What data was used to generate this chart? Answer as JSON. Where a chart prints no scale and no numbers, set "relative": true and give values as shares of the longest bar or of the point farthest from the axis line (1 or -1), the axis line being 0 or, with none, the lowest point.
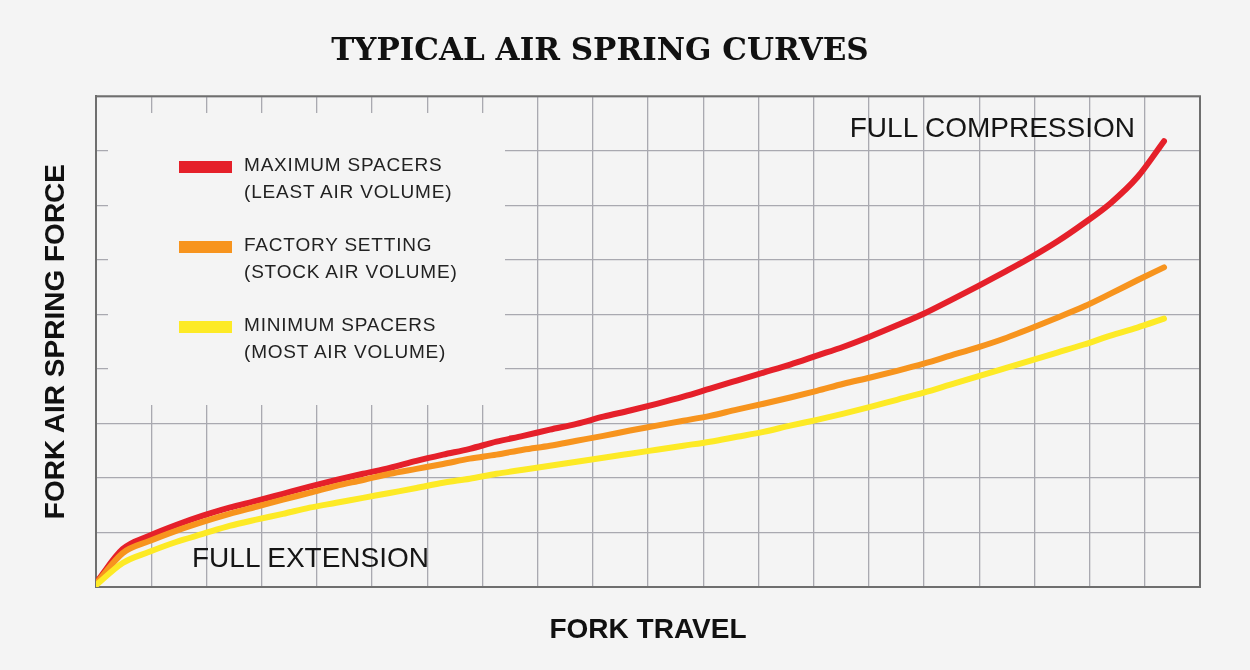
{
  "chart_data": {
    "type": "line",
    "title": "TYPICAL AIR SPRING CURVES",
    "xlabel": "FORK TRAVEL",
    "ylabel": "FORK AIR SPRING FORCE",
    "relative": true,
    "categories": [
      null,
      null,
      null,
      null,
      null,
      null,
      null,
      null,
      null,
      null,
      null,
      null,
      null,
      null,
      null,
      null,
      null,
      null,
      null,
      null,
      null,
      null,
      null,
      null,
      null,
      null,
      null,
      null,
      null,
      null,
      null,
      null,
      null,
      null,
      null,
      null,
      null,
      null,
      null,
      null,
      null
    ],
    "series": [
      {
        "name": "MAXIMUM SPACERS (LEAST AIR VOLUME)",
        "color": "#e5202a",
        "values": [
          0.009,
          0.085,
          0.115,
          0.139,
          0.16,
          0.178,
          0.193,
          0.209,
          0.225,
          0.24,
          0.254,
          0.267,
          0.283,
          0.297,
          0.31,
          0.326,
          0.339,
          0.353,
          0.366,
          0.382,
          0.396,
          0.411,
          0.427,
          0.445,
          0.463,
          0.481,
          0.499,
          0.519,
          0.539,
          0.562,
          0.587,
          0.613,
          0.643,
          0.674,
          0.706,
          0.739,
          0.775,
          0.816,
          0.861,
          0.919,
          1
        ]
      },
      {
        "name": "FACTORY SETTING (STOCK AIR VOLUME)",
        "color": "#f7941e",
        "values": [
          0.007,
          0.076,
          0.103,
          0.126,
          0.146,
          0.164,
          0.18,
          0.196,
          0.211,
          0.227,
          0.24,
          0.254,
          0.265,
          0.276,
          0.288,
          0.297,
          0.308,
          0.317,
          0.328,
          0.339,
          0.351,
          0.362,
          0.373,
          0.384,
          0.398,
          0.411,
          0.425,
          0.44,
          0.456,
          0.47,
          0.485,
          0.501,
          0.519,
          0.537,
          0.557,
          0.58,
          0.604,
          0.629,
          0.658,
          0.688,
          0.717
        ]
      },
      {
        "name": "MINIMUM SPACERS (MOST AIR VOLUME)",
        "color": "#fdea26",
        "values": [
          0.004,
          0.054,
          0.079,
          0.101,
          0.119,
          0.137,
          0.151,
          0.164,
          0.178,
          0.189,
          0.2,
          0.211,
          0.222,
          0.234,
          0.243,
          0.254,
          0.263,
          0.272,
          0.281,
          0.29,
          0.299,
          0.308,
          0.317,
          0.326,
          0.337,
          0.348,
          0.362,
          0.375,
          0.389,
          0.404,
          0.42,
          0.436,
          0.454,
          0.472,
          0.49,
          0.508,
          0.526,
          0.544,
          0.564,
          0.582,
          0.602
        ]
      }
    ],
    "annotations": [
      "FULL COMPRESSION",
      "FULL EXTENSION"
    ],
    "grid": true,
    "legend": "top left"
  }
}
